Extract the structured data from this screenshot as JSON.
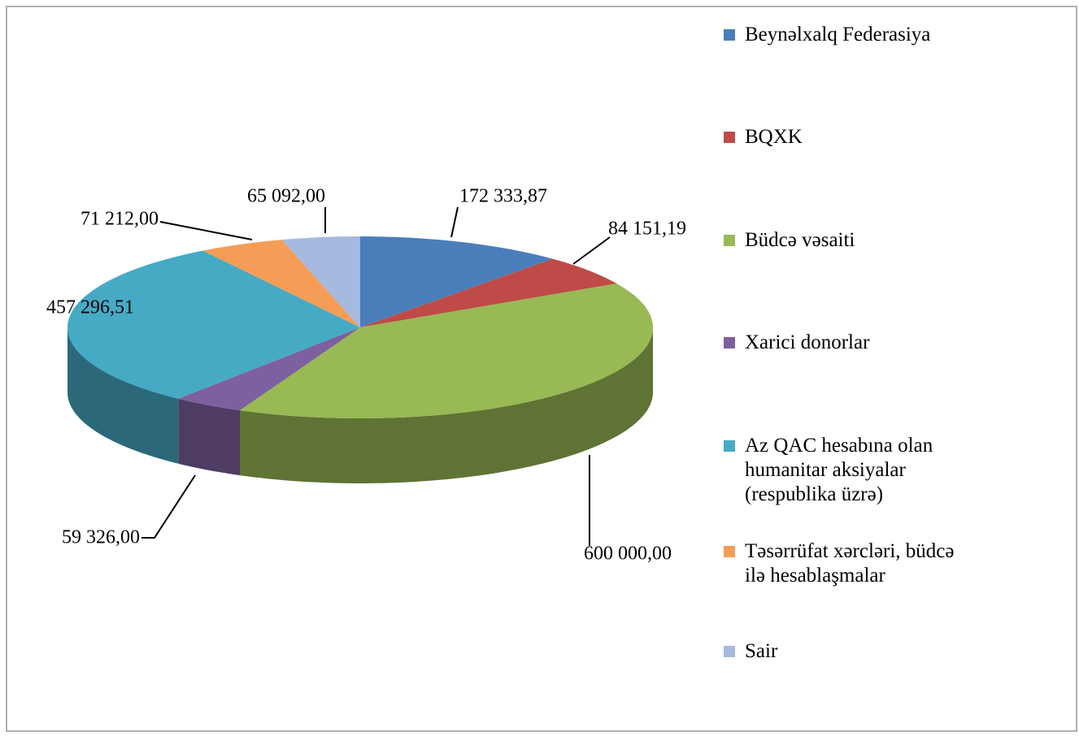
{
  "chart_data": {
    "type": "pie",
    "categories": [
      "Beynəlxalq Federasiya",
      "BQXK",
      "Büdcə vəsaiti",
      "Xarici donorlar",
      "Az QAC hesabına olan humanitar aksiyalar (respublika üzrə)",
      "Təsərrüfat xərcləri, büdcə ilə hesablaşmalar",
      "Sair"
    ],
    "values": [
      172333.87,
      84151.19,
      600000.0,
      59326.0,
      457296.51,
      71212.0,
      65092.0
    ],
    "value_labels": [
      "172 333,87",
      "84 151,19",
      "600 000,00",
      "59 326,00",
      "457 296,51",
      "71 212,00",
      "65 092,00"
    ],
    "colors": [
      "#4a7ebb",
      "#be4b48",
      "#98b954",
      "#7d60a0",
      "#46aac5",
      "#f59d56",
      "#a6b9df"
    ],
    "legend": "right"
  }
}
